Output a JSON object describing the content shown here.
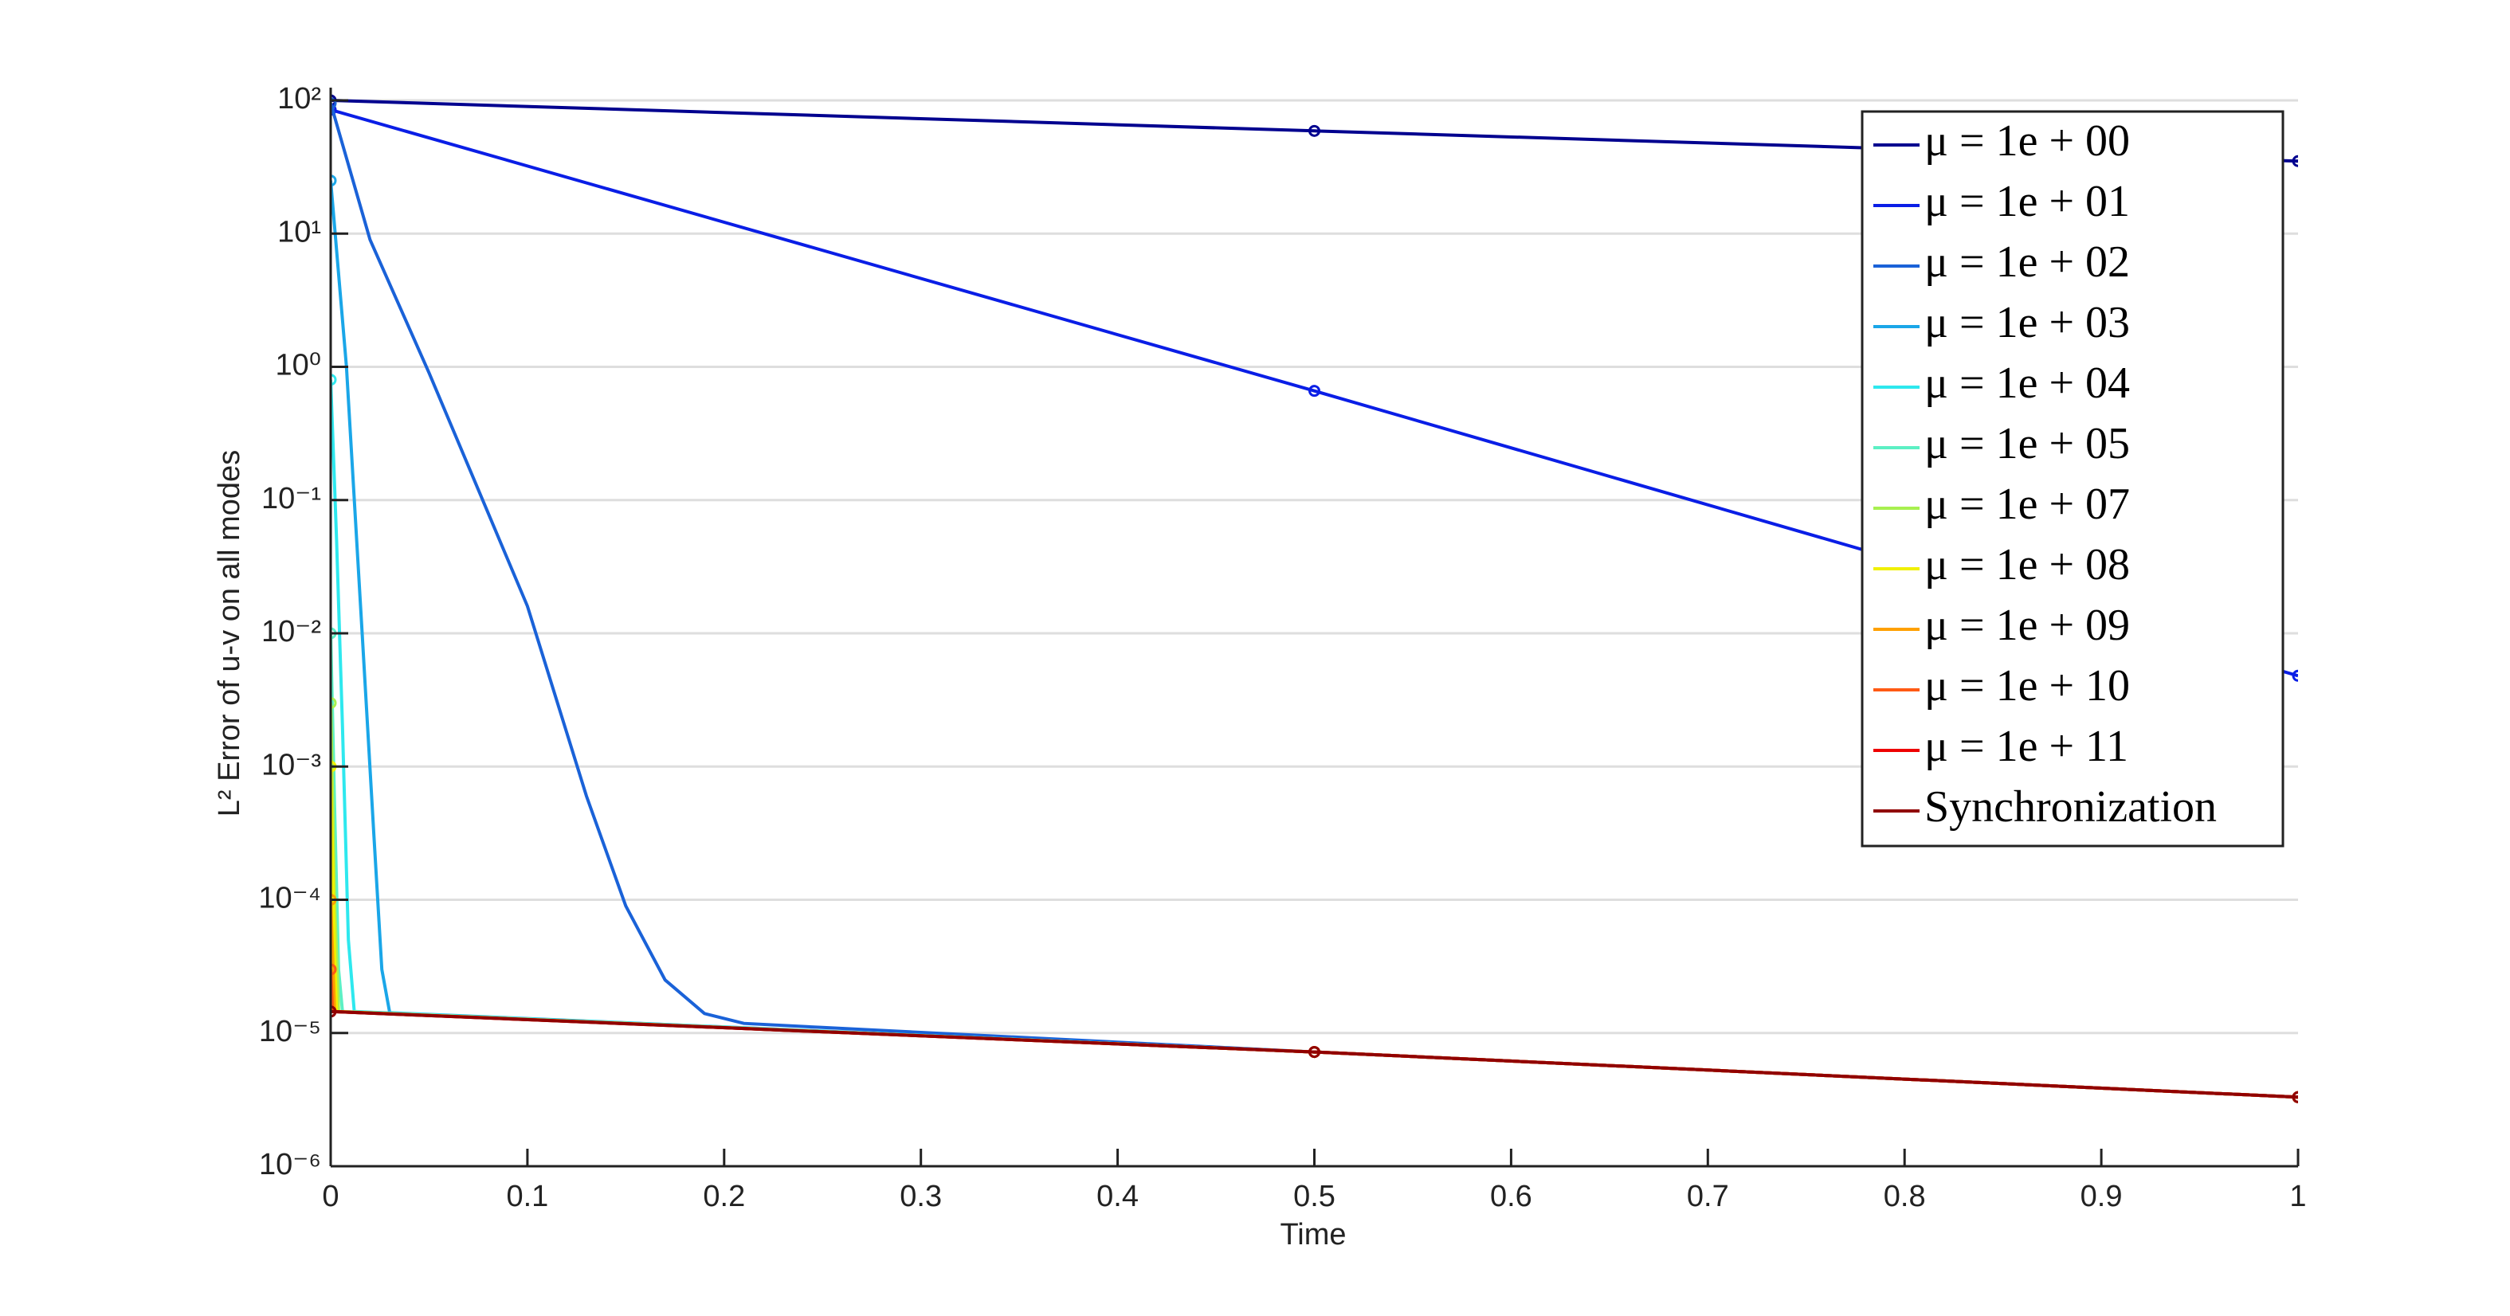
{
  "chart_data": {
    "type": "line",
    "log_y": true,
    "grid": "y",
    "legend": "upper right",
    "markers_at": [
      0,
      0.5,
      1
    ],
    "xlabel": "Time",
    "ylabel": "L² Error of u-v on all modes",
    "xlim": [
      0,
      1
    ],
    "xticks": [
      0,
      0.1,
      0.2,
      0.3,
      0.4,
      0.5,
      0.6,
      0.7,
      0.8,
      0.9,
      1
    ],
    "ylim": [
      1e-06,
      100
    ],
    "yticks": [
      {
        "value": 1e-06,
        "label": "10⁻⁶"
      },
      {
        "value": 1e-05,
        "label": "10⁻⁵"
      },
      {
        "value": 0.0001,
        "label": "10⁻⁴"
      },
      {
        "value": 0.001,
        "label": "10⁻³"
      },
      {
        "value": 0.01,
        "label": "10⁻²"
      },
      {
        "value": 0.1,
        "label": "10⁻¹"
      },
      {
        "value": 1,
        "label": "10⁰"
      },
      {
        "value": 10,
        "label": "10¹"
      },
      {
        "value": 100,
        "label": "10²"
      }
    ],
    "series": [
      {
        "name": "μ = 1e + 00",
        "color": "#00008f",
        "x": [
          0,
          0.5,
          1
        ],
        "values": [
          100,
          59,
          35
        ]
      },
      {
        "name": "μ = 1e + 01",
        "color": "#0a1ee6",
        "x": [
          0,
          0.5,
          1
        ],
        "values": [
          85,
          0.66,
          0.0048
        ]
      },
      {
        "name": "μ = 1e + 02",
        "color": "#1a62d8",
        "x": [
          0,
          0.02,
          0.05,
          0.1,
          0.13,
          0.15,
          0.17,
          0.19,
          0.21,
          0.25,
          0.5,
          1
        ],
        "values": [
          95,
          9,
          0.9,
          0.016,
          0.0006,
          9e-05,
          2.5e-05,
          1.4e-05,
          1.18e-05,
          1.1e-05,
          7.2e-06,
          3.3e-06
        ]
      },
      {
        "name": "μ = 1e + 03",
        "color": "#1aa6e8",
        "x": [
          0,
          0.008,
          0.016,
          0.022,
          0.026,
          0.03,
          0.5,
          1
        ],
        "values": [
          25,
          1,
          0.01,
          0.0003,
          3e-05,
          1.42e-05,
          7.2e-06,
          3.3e-06
        ]
      },
      {
        "name": "μ = 1e + 04",
        "color": "#2ee8ee",
        "x": [
          0,
          0.003,
          0.006,
          0.009,
          0.012,
          0.5,
          1
        ],
        "values": [
          0.8,
          0.05,
          0.002,
          5e-05,
          1.45e-05,
          7.2e-06,
          3.3e-06
        ]
      },
      {
        "name": "μ = 1e + 05",
        "color": "#5cf0c4",
        "x": [
          0,
          0.002,
          0.004,
          0.006,
          0.5,
          1
        ],
        "values": [
          0.01,
          0.0005,
          3e-05,
          1.45e-05,
          7.2e-06,
          3.3e-06
        ]
      },
      {
        "name": "μ = 1e + 07",
        "color": "#a8f050",
        "x": [
          0,
          0.002,
          0.004,
          0.5,
          1
        ],
        "values": [
          0.003,
          0.0001,
          1.45e-05,
          7.2e-06,
          3.3e-06
        ]
      },
      {
        "name": "μ = 1e + 08",
        "color": "#f0f000",
        "x": [
          0,
          0.002,
          0.003,
          0.5,
          1
        ],
        "values": [
          0.001,
          4e-05,
          1.45e-05,
          7.2e-06,
          3.3e-06
        ]
      },
      {
        "name": "μ = 1e + 09",
        "color": "#ffa000",
        "x": [
          0,
          0.002,
          0.5,
          1
        ],
        "values": [
          0.0001,
          1.45e-05,
          7.2e-06,
          3.3e-06
        ]
      },
      {
        "name": "μ = 1e + 10",
        "color": "#ff5a14",
        "x": [
          0,
          0.001,
          0.5,
          1
        ],
        "values": [
          3e-05,
          1.45e-05,
          7.2e-06,
          3.3e-06
        ]
      },
      {
        "name": "μ = 1e + 11",
        "color": "#ee0000",
        "x": [
          0,
          0.5,
          1
        ],
        "values": [
          1.45e-05,
          7.2e-06,
          3.3e-06
        ]
      },
      {
        "name": "Synchronization",
        "color": "#900000",
        "x": [
          0,
          0.5,
          1
        ],
        "values": [
          1.45e-05,
          7.2e-06,
          3.3e-06
        ]
      }
    ]
  }
}
